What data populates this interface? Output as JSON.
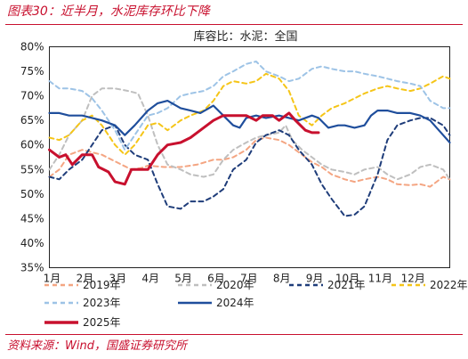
{
  "figure_title": "图表30：近半月，水泥库存环比下降",
  "source": "资料来源：Wind，国盛证券研究所",
  "chart_data": {
    "type": "line",
    "title": "库容比：水泥：全国",
    "yticks": [
      "80%",
      "75%",
      "70%",
      "65%",
      "60%",
      "55%",
      "50%",
      "45%",
      "40%",
      "35%"
    ],
    "ylim": [
      35,
      80
    ],
    "xlim": [
      1,
      13.2
    ],
    "x_labels": [
      "1月",
      "2月",
      "3月",
      "4月",
      "5月",
      "6月",
      "7月",
      "8月",
      "9月",
      "10月",
      "11月",
      "12月"
    ],
    "legend_position": "bottom",
    "series": [
      {
        "name": "2019年",
        "color": "#f4a582",
        "dash": "5,4",
        "width": 2,
        "points": [
          [
            1.0,
            53.5
          ],
          [
            1.3,
            55
          ],
          [
            1.6,
            58
          ],
          [
            2.0,
            59
          ],
          [
            2.3,
            58.5
          ],
          [
            2.6,
            58
          ],
          [
            2.9,
            57
          ],
          [
            3.2,
            56
          ],
          [
            3.5,
            55
          ],
          [
            3.8,
            55.3
          ],
          [
            4.0,
            55.8
          ],
          [
            4.5,
            55.5
          ],
          [
            5.0,
            55.5
          ],
          [
            5.5,
            56
          ],
          [
            6.0,
            57
          ],
          [
            6.3,
            57
          ],
          [
            6.6,
            57.5
          ],
          [
            7.0,
            59
          ],
          [
            7.3,
            61
          ],
          [
            7.6,
            61.5
          ],
          [
            8.0,
            61
          ],
          [
            8.3,
            60
          ],
          [
            8.6,
            58.5
          ],
          [
            9.0,
            56.5
          ],
          [
            9.3,
            55.5
          ],
          [
            9.6,
            54
          ],
          [
            10.0,
            53
          ],
          [
            10.3,
            52.5
          ],
          [
            10.6,
            53
          ],
          [
            11.0,
            53.5
          ],
          [
            11.3,
            53
          ],
          [
            11.6,
            52
          ],
          [
            12.0,
            51.8
          ],
          [
            12.3,
            52
          ],
          [
            12.6,
            51.5
          ],
          [
            13.0,
            53.5
          ],
          [
            13.2,
            53
          ]
        ]
      },
      {
        "name": "2020年",
        "color": "#bfbfbf",
        "dash": "5,4",
        "width": 2,
        "points": [
          [
            1.0,
            55
          ],
          [
            1.3,
            58
          ],
          [
            1.6,
            62
          ],
          [
            2.0,
            65
          ],
          [
            2.3,
            70
          ],
          [
            2.6,
            71.5
          ],
          [
            3.0,
            71.5
          ],
          [
            3.4,
            71
          ],
          [
            3.7,
            70.5
          ],
          [
            4.0,
            66
          ],
          [
            4.3,
            60
          ],
          [
            4.6,
            56
          ],
          [
            5.0,
            55
          ],
          [
            5.3,
            54
          ],
          [
            5.7,
            53.5
          ],
          [
            6.0,
            54
          ],
          [
            6.3,
            57
          ],
          [
            6.6,
            59
          ],
          [
            7.0,
            60.5
          ],
          [
            7.3,
            61.5
          ],
          [
            7.6,
            62
          ],
          [
            8.0,
            62.5
          ],
          [
            8.2,
            64
          ],
          [
            8.4,
            61
          ],
          [
            8.7,
            59
          ],
          [
            9.0,
            57.5
          ],
          [
            9.3,
            56
          ],
          [
            9.6,
            55
          ],
          [
            10.0,
            54.5
          ],
          [
            10.3,
            54
          ],
          [
            10.6,
            55
          ],
          [
            11.0,
            55.5
          ],
          [
            11.3,
            54
          ],
          [
            11.6,
            53
          ],
          [
            12.0,
            54
          ],
          [
            12.3,
            55.5
          ],
          [
            12.6,
            56
          ],
          [
            13.0,
            55
          ],
          [
            13.2,
            53
          ]
        ]
      },
      {
        "name": "2021年",
        "color": "#1f3d7a",
        "dash": "5,4",
        "width": 2,
        "points": [
          [
            1.0,
            53.5
          ],
          [
            1.3,
            53
          ],
          [
            1.6,
            55
          ],
          [
            2.0,
            57
          ],
          [
            2.3,
            60
          ],
          [
            2.6,
            63
          ],
          [
            3.0,
            64
          ],
          [
            3.3,
            60
          ],
          [
            3.6,
            58
          ],
          [
            4.0,
            57
          ],
          [
            4.3,
            52
          ],
          [
            4.6,
            47.5
          ],
          [
            5.0,
            47
          ],
          [
            5.3,
            48.5
          ],
          [
            5.7,
            48.5
          ],
          [
            6.0,
            49.5
          ],
          [
            6.3,
            51
          ],
          [
            6.6,
            55
          ],
          [
            7.0,
            57
          ],
          [
            7.3,
            60.5
          ],
          [
            7.6,
            62
          ],
          [
            8.0,
            63
          ],
          [
            8.3,
            62
          ],
          [
            8.6,
            59
          ],
          [
            9.0,
            56
          ],
          [
            9.3,
            52
          ],
          [
            9.6,
            49
          ],
          [
            10.0,
            45.5
          ],
          [
            10.3,
            45.8
          ],
          [
            10.6,
            47.5
          ],
          [
            11.0,
            54
          ],
          [
            11.3,
            61
          ],
          [
            11.6,
            64
          ],
          [
            12.0,
            65
          ],
          [
            12.3,
            65.5
          ],
          [
            12.6,
            65.5
          ],
          [
            13.0,
            64
          ],
          [
            13.2,
            62
          ]
        ]
      },
      {
        "name": "2022年",
        "color": "#f5c518",
        "dash": "5,4",
        "width": 2,
        "points": [
          [
            1.0,
            61.5
          ],
          [
            1.3,
            61
          ],
          [
            1.6,
            62
          ],
          [
            2.0,
            65
          ],
          [
            2.3,
            66
          ],
          [
            2.6,
            64
          ],
          [
            3.0,
            60
          ],
          [
            3.3,
            58
          ],
          [
            3.6,
            60
          ],
          [
            4.0,
            64
          ],
          [
            4.3,
            64.5
          ],
          [
            4.6,
            63
          ],
          [
            5.0,
            65
          ],
          [
            5.3,
            66
          ],
          [
            5.7,
            67
          ],
          [
            6.0,
            69
          ],
          [
            6.3,
            72
          ],
          [
            6.6,
            73
          ],
          [
            7.0,
            72.5
          ],
          [
            7.3,
            73
          ],
          [
            7.6,
            74.5
          ],
          [
            8.0,
            73.5
          ],
          [
            8.3,
            71
          ],
          [
            8.6,
            66
          ],
          [
            9.0,
            64
          ],
          [
            9.3,
            66
          ],
          [
            9.6,
            67.5
          ],
          [
            10.0,
            68.5
          ],
          [
            10.3,
            69.5
          ],
          [
            10.6,
            70.5
          ],
          [
            11.0,
            71.5
          ],
          [
            11.3,
            72
          ],
          [
            11.6,
            71.5
          ],
          [
            12.0,
            71
          ],
          [
            12.3,
            71.5
          ],
          [
            12.6,
            72.5
          ],
          [
            13.0,
            74
          ],
          [
            13.2,
            73.5
          ]
        ]
      },
      {
        "name": "2023年",
        "color": "#9dc3e6",
        "dash": "5,4",
        "width": 2,
        "points": [
          [
            1.0,
            73
          ],
          [
            1.3,
            71.5
          ],
          [
            1.6,
            71.5
          ],
          [
            2.0,
            71
          ],
          [
            2.3,
            69.5
          ],
          [
            2.6,
            67
          ],
          [
            3.0,
            63
          ],
          [
            3.3,
            59
          ],
          [
            3.6,
            62
          ],
          [
            4.0,
            66
          ],
          [
            4.3,
            66.5
          ],
          [
            4.6,
            67.5
          ],
          [
            5.0,
            70
          ],
          [
            5.3,
            70.5
          ],
          [
            5.7,
            71
          ],
          [
            6.0,
            72
          ],
          [
            6.3,
            74
          ],
          [
            6.6,
            75
          ],
          [
            7.0,
            76.5
          ],
          [
            7.3,
            77
          ],
          [
            7.6,
            75
          ],
          [
            8.0,
            74
          ],
          [
            8.3,
            73
          ],
          [
            8.6,
            73.5
          ],
          [
            9.0,
            75.5
          ],
          [
            9.3,
            76
          ],
          [
            9.6,
            75.5
          ],
          [
            10.0,
            75
          ],
          [
            10.3,
            75
          ],
          [
            10.6,
            74.5
          ],
          [
            11.0,
            74
          ],
          [
            11.3,
            73.5
          ],
          [
            11.6,
            73
          ],
          [
            12.0,
            72.5
          ],
          [
            12.3,
            72
          ],
          [
            12.6,
            69
          ],
          [
            13.0,
            67.5
          ],
          [
            13.2,
            67.5
          ]
        ]
      },
      {
        "name": "2024年",
        "color": "#1f4e9c",
        "dash": "",
        "width": 2.2,
        "points": [
          [
            1.0,
            66.5
          ],
          [
            1.3,
            66.5
          ],
          [
            1.6,
            66
          ],
          [
            2.0,
            66
          ],
          [
            2.3,
            65.5
          ],
          [
            2.6,
            65
          ],
          [
            3.0,
            64
          ],
          [
            3.3,
            62
          ],
          [
            3.6,
            64
          ],
          [
            4.0,
            67
          ],
          [
            4.3,
            68.5
          ],
          [
            4.6,
            69
          ],
          [
            5.0,
            67.5
          ],
          [
            5.3,
            67
          ],
          [
            5.6,
            66.5
          ],
          [
            6.0,
            68
          ],
          [
            6.3,
            66
          ],
          [
            6.6,
            64
          ],
          [
            6.8,
            63.5
          ],
          [
            7.0,
            65.5
          ],
          [
            7.3,
            66
          ],
          [
            7.6,
            65.5
          ],
          [
            8.0,
            66
          ],
          [
            8.3,
            65.5
          ],
          [
            8.6,
            65
          ],
          [
            9.0,
            66
          ],
          [
            9.2,
            65.5
          ],
          [
            9.5,
            63.5
          ],
          [
            9.8,
            64
          ],
          [
            10.0,
            64
          ],
          [
            10.3,
            63.5
          ],
          [
            10.6,
            64
          ],
          [
            10.8,
            66
          ],
          [
            11.0,
            67
          ],
          [
            11.3,
            67
          ],
          [
            11.6,
            66.5
          ],
          [
            12.0,
            66.5
          ],
          [
            12.3,
            66
          ],
          [
            12.6,
            65
          ],
          [
            13.0,
            62
          ],
          [
            13.2,
            60.5
          ]
        ]
      },
      {
        "name": "2025年",
        "color": "#c8102e",
        "dash": "",
        "width": 3,
        "points": [
          [
            1.0,
            59
          ],
          [
            1.3,
            57.5
          ],
          [
            1.5,
            58
          ],
          [
            1.7,
            56
          ],
          [
            2.0,
            58
          ],
          [
            2.3,
            58
          ],
          [
            2.5,
            55.5
          ],
          [
            2.8,
            54.5
          ],
          [
            3.0,
            52.5
          ],
          [
            3.3,
            52
          ],
          [
            3.5,
            55
          ],
          [
            3.8,
            55
          ],
          [
            4.0,
            55
          ],
          [
            4.3,
            58
          ],
          [
            4.6,
            60
          ],
          [
            5.0,
            60.5
          ],
          [
            5.3,
            61.5
          ],
          [
            5.6,
            63
          ],
          [
            6.0,
            65
          ],
          [
            6.3,
            66
          ],
          [
            6.6,
            66
          ],
          [
            7.0,
            66
          ],
          [
            7.3,
            65
          ],
          [
            7.5,
            66
          ],
          [
            7.8,
            66
          ],
          [
            8.0,
            65
          ],
          [
            8.3,
            66.5
          ],
          [
            8.5,
            65
          ],
          [
            8.8,
            63
          ],
          [
            9.0,
            62.5
          ],
          [
            9.2,
            62.5
          ]
        ]
      }
    ]
  }
}
